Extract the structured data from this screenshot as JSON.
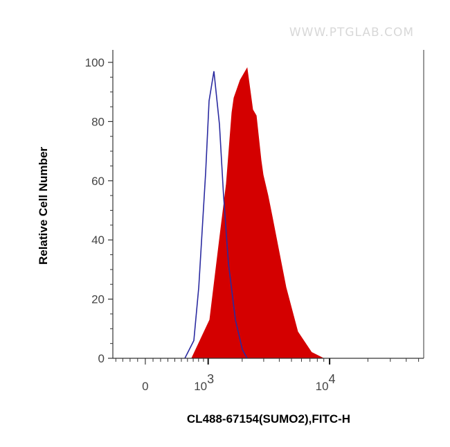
{
  "watermark": "WWW.PTGLAB.COM",
  "chart_data": {
    "type": "area",
    "xlabel": "CL488-67154(SUMO2),FITC-H",
    "ylabel": "Relative Cell Number",
    "x_scale": "biexponential",
    "xlim": [
      -440,
      55000
    ],
    "ylim": [
      0,
      100
    ],
    "grid": false,
    "x_ticks": [
      {
        "value": 0,
        "label": "0"
      },
      {
        "value": 1000,
        "base": "10",
        "exp": "3"
      },
      {
        "value": 10000,
        "base": "10",
        "exp": "4"
      }
    ],
    "y_ticks": [
      0,
      20,
      40,
      60,
      80,
      100
    ],
    "y_tick_labels": [
      "0",
      "20",
      "40",
      "60",
      "80",
      "100"
    ],
    "colors": {
      "sample": "#d40000",
      "control": "#2a2aa0"
    },
    "series": [
      {
        "style": "filled",
        "x": [
          673,
          1036,
          1273,
          1466,
          1639,
          1707,
          1927,
          2197,
          2443,
          2608,
          2854,
          2964,
          3244,
          3503,
          3979,
          4518,
          5603,
          7208,
          8921
        ],
        "y": [
          0,
          13,
          40,
          59,
          83,
          88,
          94,
          98,
          84,
          82,
          67,
          62,
          55,
          48,
          36,
          24,
          9,
          2,
          0
        ]
      },
      {
        "style": "outline",
        "x": [
          556,
          712,
          804,
          945,
          1020,
          1133,
          1273,
          1386,
          1530,
          1755,
          2004,
          2197
        ],
        "y": [
          0,
          6,
          24,
          63,
          87,
          97,
          79,
          55,
          32,
          13,
          3,
          0
        ]
      }
    ]
  }
}
